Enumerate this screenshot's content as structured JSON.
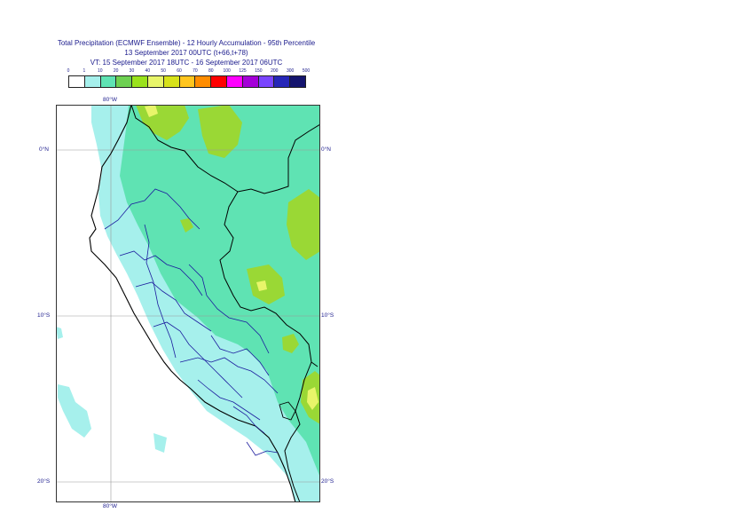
{
  "title": {
    "line1": "Total Precipitation (ECMWF Ensemble) - 12 Hourly Accumulation - 95th Percentile",
    "line2": "13 September 2017 00UTC (t+66,t+78)",
    "line3": "VT: 15 September 2017 18UTC - 16 September 2017 06UTC"
  },
  "legend": {
    "thresholds": [
      "0",
      "1",
      "10",
      "20",
      "30",
      "40",
      "50",
      "60",
      "70",
      "80",
      "100",
      "125",
      "150",
      "200",
      "300",
      "500"
    ],
    "colors": [
      "#ffffff",
      "#a6f0ec",
      "#5fe3b3",
      "#6ed152",
      "#9ae21c",
      "#e8f56a",
      "#d7e21a",
      "#ffc51e",
      "#ff8c00",
      "#ff0000",
      "#ff00ff",
      "#a400d8",
      "#7a45ff",
      "#2626b8",
      "#14146e"
    ]
  },
  "axes": {
    "lon_top": "80°W",
    "lon_bottom": "80°W",
    "lat_labels": [
      "0°N",
      "10°S",
      "20°S"
    ]
  },
  "colors": {
    "light_cyan": "#a6f0ec",
    "mint": "#5fe3b3",
    "green": "#9ad835",
    "yellow": "#e8f56a",
    "border_black": "#000000",
    "border_blue": "#1c1c9e",
    "grid": "#9a9a9a"
  }
}
